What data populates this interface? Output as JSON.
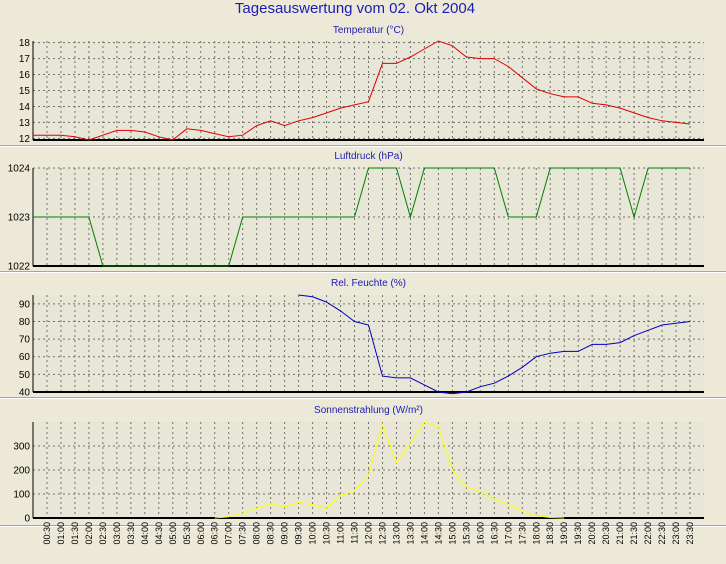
{
  "page": {
    "title": "Tagesauswertung vom 02. Okt 2004"
  },
  "chart_data": [
    {
      "type": "line",
      "title": "Temperatur (°C)",
      "xlabel": "",
      "ylabel": "",
      "ylim": [
        11.9,
        18.1
      ],
      "yticks": [
        12,
        13,
        14,
        15,
        16,
        17,
        18
      ],
      "grid": true,
      "series": [
        {
          "color": "#e00000",
          "x": [
            "00:00",
            "00:30",
            "01:00",
            "01:30",
            "02:00",
            "02:30",
            "03:00",
            "03:30",
            "04:00",
            "04:30",
            "05:00",
            "05:30",
            "06:00",
            "06:30",
            "07:00",
            "07:30",
            "08:00",
            "08:30",
            "09:00",
            "09:30",
            "10:00",
            "10:30",
            "11:00",
            "11:30",
            "12:00",
            "12:30",
            "13:00",
            "13:30",
            "14:00",
            "14:30",
            "15:00",
            "15:30",
            "16:00",
            "16:30",
            "17:00",
            "17:30",
            "18:00",
            "18:30",
            "19:00",
            "19:30",
            "20:00",
            "20:30",
            "21:00",
            "21:30",
            "22:00",
            "22:30",
            "23:00",
            "23:30"
          ],
          "values": [
            12.2,
            12.2,
            12.2,
            12.1,
            11.9,
            12.2,
            12.5,
            12.5,
            12.4,
            12.1,
            11.9,
            12.6,
            12.5,
            12.3,
            12.1,
            12.2,
            12.8,
            13.1,
            12.8,
            13.1,
            13.3,
            13.6,
            13.9,
            14.1,
            14.3,
            16.7,
            16.7,
            17.1,
            17.6,
            18.1,
            17.8,
            17.1,
            17.0,
            17.0,
            16.5,
            15.8,
            15.1,
            14.8,
            14.6,
            14.6,
            14.2,
            14.1,
            13.9,
            13.6,
            13.3,
            13.1,
            13.0,
            12.9
          ]
        }
      ]
    },
    {
      "type": "line",
      "title": "Luftdruck (hPa)",
      "xlabel": "",
      "ylabel": "",
      "ylim": [
        1022,
        1024
      ],
      "yticks": [
        1022,
        1023,
        1024
      ],
      "grid": true,
      "series": [
        {
          "color": "#008000",
          "x": [
            "00:00",
            "00:30",
            "01:00",
            "01:30",
            "02:00",
            "02:30",
            "03:00",
            "03:30",
            "04:00",
            "04:30",
            "05:00",
            "05:30",
            "06:00",
            "06:30",
            "07:00",
            "07:30",
            "08:00",
            "08:30",
            "09:00",
            "09:30",
            "10:00",
            "10:30",
            "11:00",
            "11:30",
            "12:00",
            "12:30",
            "13:00",
            "13:30",
            "14:00",
            "14:30",
            "15:00",
            "15:30",
            "16:00",
            "16:30",
            "17:00",
            "17:30",
            "18:00",
            "18:30",
            "19:00",
            "19:30",
            "20:00",
            "20:30",
            "21:00",
            "21:30",
            "22:00",
            "22:30",
            "23:00",
            "23:30"
          ],
          "values": [
            1023,
            1023,
            1023,
            1023,
            1023,
            1022,
            1022,
            1022,
            1022,
            1022,
            1022,
            1022,
            1022,
            1022,
            1022,
            1023,
            1023,
            1023,
            1023,
            1023,
            1023,
            1023,
            1023,
            1023,
            1024,
            1024,
            1024,
            1023,
            1024,
            1024,
            1024,
            1024,
            1024,
            1024,
            1023,
            1023,
            1023,
            1024,
            1024,
            1024,
            1024,
            1024,
            1024,
            1023,
            1024,
            1024,
            1024,
            1024
          ]
        }
      ]
    },
    {
      "type": "line",
      "title": "Rel. Feuchte (%)",
      "xlabel": "",
      "ylabel": "",
      "ylim": [
        40,
        95
      ],
      "yticks": [
        40,
        50,
        60,
        70,
        80,
        90
      ],
      "grid": true,
      "series": [
        {
          "color": "#0000c0",
          "x": [
            "09:30",
            "10:00",
            "10:30",
            "11:00",
            "11:30",
            "12:00",
            "12:30",
            "13:00",
            "13:30",
            "14:00",
            "14:30",
            "15:00",
            "15:30",
            "16:00",
            "16:30",
            "17:00",
            "17:30",
            "18:00",
            "18:30",
            "19:00",
            "19:30",
            "20:00",
            "20:30",
            "21:00",
            "21:30",
            "22:00",
            "22:30",
            "23:00",
            "23:30"
          ],
          "values": [
            95,
            94,
            91,
            86,
            80,
            78,
            49,
            48,
            48,
            44,
            40,
            39,
            40,
            43,
            45,
            49,
            54,
            60,
            62,
            63,
            63,
            67,
            67,
            68,
            72,
            75,
            78,
            79,
            80
          ]
        }
      ]
    },
    {
      "type": "line",
      "title": "Sonnenstrahlung (W/m²)",
      "xlabel": "",
      "ylabel": "",
      "ylim": [
        0,
        400
      ],
      "yticks": [
        0,
        100,
        200,
        300
      ],
      "grid": true,
      "series": [
        {
          "color": "#ffff00",
          "x": [
            "06:30",
            "07:00",
            "07:30",
            "08:00",
            "08:30",
            "09:00",
            "09:30",
            "10:00",
            "10:30",
            "11:00",
            "11:30",
            "12:00",
            "12:30",
            "13:00",
            "13:30",
            "14:00",
            "14:30",
            "15:00",
            "15:30",
            "16:00",
            "16:30",
            "17:00",
            "17:30",
            "18:00",
            "18:30",
            "19:00"
          ],
          "values": [
            0,
            5,
            20,
            40,
            60,
            45,
            65,
            55,
            40,
            95,
            110,
            180,
            390,
            230,
            310,
            400,
            380,
            200,
            130,
            110,
            80,
            55,
            30,
            10,
            2,
            0
          ]
        }
      ]
    }
  ],
  "x_axis": {
    "ticks": [
      "00:30",
      "01:00",
      "01:30",
      "02:00",
      "02:30",
      "03:00",
      "03:30",
      "04:00",
      "04:30",
      "05:00",
      "05:30",
      "06:00",
      "06:30",
      "07:00",
      "07:30",
      "08:00",
      "08:30",
      "09:00",
      "09:30",
      "10:00",
      "10:30",
      "11:00",
      "11:30",
      "12:00",
      "12:30",
      "13:00",
      "13:30",
      "14:00",
      "14:30",
      "15:00",
      "15:30",
      "16:00",
      "16:30",
      "17:00",
      "17:30",
      "18:00",
      "18:30",
      "19:00",
      "19:30",
      "20:00",
      "20:30",
      "21:00",
      "21:30",
      "22:00",
      "22:30",
      "23:00",
      "23:30"
    ]
  }
}
